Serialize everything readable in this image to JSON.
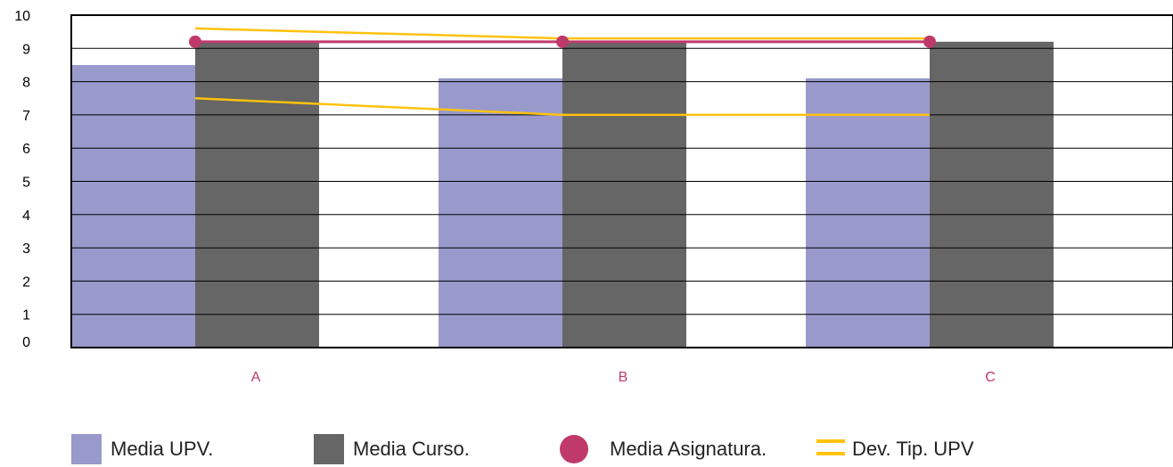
{
  "chart_data": {
    "type": "bar",
    "categories": [
      "A",
      "B",
      "C"
    ],
    "ylim": [
      0,
      10
    ],
    "yticks": [
      "0",
      "1",
      "2",
      "3",
      "4",
      "5",
      "6",
      "7",
      "8",
      "9",
      "10"
    ],
    "grid": true,
    "legend_position": "bottom",
    "series": [
      {
        "name": "Media UPV.",
        "kind": "bar",
        "color": "#9999cc",
        "values": [
          8.5,
          8.1,
          8.1
        ]
      },
      {
        "name": "Media Curso.",
        "kind": "bar",
        "color": "#666666",
        "values": [
          9.2,
          9.2,
          9.2
        ]
      },
      {
        "name": "Media Asignatura.",
        "kind": "line-marker",
        "color": "#c0396b",
        "values": [
          9.2,
          9.2,
          9.2
        ]
      },
      {
        "name": "Dev. Tip. UPV",
        "kind": "range-lines",
        "color": "#ffc20e",
        "upper": [
          9.6,
          9.3,
          9.3
        ],
        "lower": [
          7.5,
          7.0,
          7.0
        ]
      }
    ]
  },
  "legend": {
    "media_upv": "Media UPV.",
    "media_curso": "Media Curso.",
    "media_asignatura": "Media Asignatura.",
    "dev_tip_upv": "Dev. Tip. UPV"
  },
  "colors": {
    "bar_upv": "#9999cc",
    "bar_curso": "#666666",
    "asignatura": "#c0396b",
    "dev_tip": "#ffc20e",
    "category_label": "#c0396b"
  }
}
